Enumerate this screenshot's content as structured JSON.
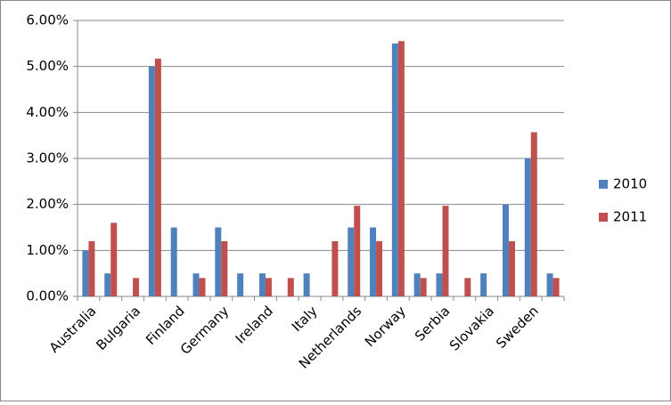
{
  "chart_data": {
    "type": "bar",
    "categories": [
      "Australia",
      null,
      "Bulgaria",
      null,
      "Finland",
      null,
      "Germany",
      null,
      "Ireland",
      null,
      "Italy",
      null,
      "Netherlands",
      null,
      "Norway",
      null,
      "Serbia",
      null,
      "Slovakia",
      null,
      "Sweden",
      null
    ],
    "series": [
      {
        "name": "2010",
        "color": "#4f81bd",
        "values": [
          1.0,
          0.5,
          0,
          5.0,
          1.5,
          0.5,
          1.5,
          0.5,
          0.5,
          0,
          0.5,
          0,
          1.5,
          1.5,
          5.5,
          0.5,
          0.5,
          0,
          0.5,
          2.0,
          3.0,
          0.5
        ]
      },
      {
        "name": "2011",
        "color": "#c0504d",
        "values": [
          1.2,
          1.6,
          0.4,
          5.17,
          0,
          0.4,
          1.2,
          0,
          0.4,
          0.4,
          0,
          1.2,
          1.97,
          1.2,
          5.55,
          0.4,
          1.97,
          0.4,
          0,
          1.2,
          3.57,
          0.4
        ]
      }
    ],
    "ylim": [
      0,
      6
    ],
    "yticks": [
      {
        "value": 0,
        "label": "0.00%"
      },
      {
        "value": 1,
        "label": "1.00%"
      },
      {
        "value": 2,
        "label": "2.00%"
      },
      {
        "value": 3,
        "label": "3.00%"
      },
      {
        "value": 4,
        "label": "4.00%"
      },
      {
        "value": 5,
        "label": "5.00%"
      },
      {
        "value": 6,
        "label": "6.00%"
      }
    ],
    "grid": true,
    "legend": "right"
  }
}
